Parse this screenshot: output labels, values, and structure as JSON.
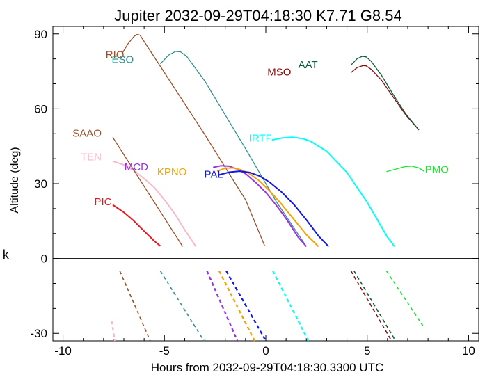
{
  "chart_data": {
    "type": "line",
    "title": "Jupiter 2032-09-29T04:18:30  K7.71  G8.54",
    "xlabel": "Hours from 2032-09-29T04:18:30.3300 UTC",
    "ylabel": "Altitude (deg)",
    "side_label": "k",
    "xlim": [
      -10.5,
      10.5
    ],
    "ylim": [
      -33,
      93
    ],
    "x_ticks": [
      -10,
      -5,
      0,
      5,
      10
    ],
    "x_tick_labels": [
      "-10",
      "-5",
      "0",
      "5",
      "10"
    ],
    "y_ticks": [
      -30,
      0,
      30,
      60,
      90
    ],
    "y_tick_labels": [
      "-30",
      "0",
      "30",
      "60",
      "90"
    ],
    "zero_line": true,
    "grid": false,
    "series": [
      {
        "name": "PIC",
        "color": "#e8141e",
        "width": 2,
        "x": [
          -7.55,
          -7.0,
          -6.5,
          -6.0,
          -5.5,
          -5.2
        ],
        "y": [
          21.5,
          18.5,
          15.0,
          11.0,
          7.0,
          5.0
        ],
        "label_xy": [
          -7.6,
          23.0
        ],
        "label_anchor": "end",
        "below_x": [
          -7.5,
          -7.45
        ],
        "below_y": [
          -32.5,
          -33
        ]
      },
      {
        "name": "TEN",
        "color": "#f9b7c9",
        "width": 2,
        "x": [
          -7.55,
          -7.0,
          -6.5,
          -6.0,
          -5.5,
          -5.0,
          -4.5,
          -4.0,
          -3.45
        ],
        "y": [
          39.0,
          37.5,
          35.3,
          32.0,
          28.5,
          23.5,
          18.0,
          11.5,
          4.8
        ],
        "label_xy": [
          -8.1,
          41.0
        ],
        "label_anchor": "end",
        "below_x": [
          -7.6,
          -7.45
        ],
        "below_y": [
          -25,
          -33
        ]
      },
      {
        "name": "SAAO",
        "color": "#995028",
        "width": 1.3,
        "x": [
          -7.55,
          -4.1
        ],
        "y": [
          48.6,
          4.8
        ],
        "label_xy": [
          -8.1,
          50.5
        ],
        "label_anchor": "end",
        "below_x": [
          -7.2,
          -5.7
        ],
        "below_y": [
          -5,
          -33
        ]
      },
      {
        "name": "RIO",
        "color": "#995028",
        "width": 1.3,
        "x": [
          -7.1,
          -6.8,
          -6.5,
          -6.35,
          -6.2,
          -5.0,
          -3.0,
          -1.0,
          -0.05
        ],
        "y": [
          82.0,
          86.0,
          89.0,
          89.8,
          89.5,
          74.5,
          49.5,
          23.5,
          5.0
        ],
        "label_xy": [
          -7.9,
          82.0
        ],
        "label_anchor": "start",
        "below_x": [],
        "below_y": []
      },
      {
        "name": "ESO",
        "color": "#2f918e",
        "width": 1.3,
        "x": [
          -5.2,
          -4.8,
          -4.45,
          -4.2,
          -3.9,
          -3.0,
          -1.0,
          0.5,
          2.0
        ],
        "y": [
          78.0,
          81.5,
          83.0,
          82.8,
          81.0,
          71.0,
          44.0,
          23.0,
          4.8
        ],
        "label_xy": [
          -7.6,
          80.0
        ],
        "label_anchor": "start",
        "below_x": [
          -5.2,
          -3.05
        ],
        "below_y": [
          -5,
          -33
        ]
      },
      {
        "name": "MCD",
        "color": "#9b30e1",
        "width": 2,
        "x": [
          -2.6,
          -2.2,
          -1.8,
          -1.4,
          -1.0,
          -0.5,
          0.0,
          0.5,
          1.0,
          1.6,
          2.0
        ],
        "y": [
          36.5,
          37.2,
          37.0,
          35.8,
          34.0,
          30.5,
          26.5,
          21.5,
          16.0,
          8.5,
          4.8
        ],
        "label_xy": [
          -5.8,
          37.0
        ],
        "label_anchor": "end",
        "below_x": [
          -2.9,
          -1.4
        ],
        "below_y": [
          -5,
          -33
        ]
      },
      {
        "name": "KPNO",
        "color": "#f5a200",
        "width": 2,
        "x": [
          -2.4,
          -2.0,
          -1.6,
          -1.2,
          -0.8,
          -0.3,
          0.2,
          0.7,
          1.3,
          2.0,
          2.6
        ],
        "y": [
          35.0,
          36.2,
          36.3,
          35.5,
          34.0,
          31.0,
          27.0,
          22.5,
          16.5,
          9.5,
          4.8
        ],
        "label_xy": [
          -3.9,
          35.0
        ],
        "label_anchor": "end",
        "below_x": [
          -2.3,
          -0.55
        ],
        "below_y": [
          -5,
          -33
        ]
      },
      {
        "name": "PAL",
        "color": "#1215e8",
        "width": 2,
        "x": [
          -2.3,
          -1.8,
          -1.3,
          -0.8,
          -0.3,
          0.2,
          0.8,
          1.4,
          2.0,
          2.6,
          3.1
        ],
        "y": [
          33.5,
          34.6,
          35.0,
          34.5,
          33.0,
          30.5,
          26.5,
          21.5,
          15.5,
          9.0,
          4.8
        ],
        "label_xy": [
          -2.1,
          34.0
        ],
        "label_anchor": "end",
        "below_x": [
          -1.95,
          0.0
        ],
        "below_y": [
          -5,
          -33
        ]
      },
      {
        "name": "IRTF",
        "color": "#00ffff",
        "width": 2,
        "x": [
          0.3,
          0.8,
          1.3,
          1.8,
          2.2,
          3.0,
          4.0,
          5.0,
          6.0,
          6.35
        ],
        "y": [
          47.5,
          48.3,
          48.6,
          48.1,
          47.0,
          43.0,
          34.5,
          22.5,
          8.5,
          4.8
        ],
        "label_xy": [
          0.3,
          48.5
        ],
        "label_anchor": "end",
        "below_x": [
          0.35,
          2.1
        ],
        "below_y": [
          -5,
          -33
        ]
      },
      {
        "name": "MSO",
        "color": "#840e0e",
        "width": 1.3,
        "x": [
          4.2,
          4.5,
          4.8,
          4.95,
          5.2,
          5.7,
          6.3,
          6.9,
          7.55
        ],
        "y": [
          74.5,
          76.5,
          77.3,
          77.2,
          75.8,
          71.5,
          64.5,
          57.5,
          51.5
        ],
        "label_xy": [
          1.25,
          75.0
        ],
        "label_anchor": "end",
        "below_x": [
          4.2,
          6.2
        ],
        "below_y": [
          -5,
          -33
        ]
      },
      {
        "name": "AAT",
        "color": "#0d5e3c",
        "width": 1.3,
        "x": [
          4.2,
          4.5,
          4.75,
          4.95,
          5.2,
          5.7,
          6.3,
          6.9,
          7.55
        ],
        "y": [
          77.5,
          80.0,
          81.0,
          80.8,
          79.0,
          73.5,
          65.5,
          58.0,
          51.5
        ],
        "label_xy": [
          1.6,
          78.0
        ],
        "label_anchor": "start",
        "below_x": [
          4.35,
          6.4
        ],
        "below_y": [
          -5,
          -33
        ]
      },
      {
        "name": "PMO",
        "color": "#18e62a",
        "width": 1.3,
        "x": [
          5.95,
          6.4,
          6.85,
          7.2,
          7.55,
          7.8
        ],
        "y": [
          34.8,
          35.8,
          36.8,
          37.0,
          36.3,
          35.0
        ],
        "label_xy": [
          7.85,
          36.0
        ],
        "label_anchor": "start",
        "below_x": [
          5.95,
          7.75
        ],
        "below_y": [
          -5,
          -27
        ]
      }
    ]
  }
}
